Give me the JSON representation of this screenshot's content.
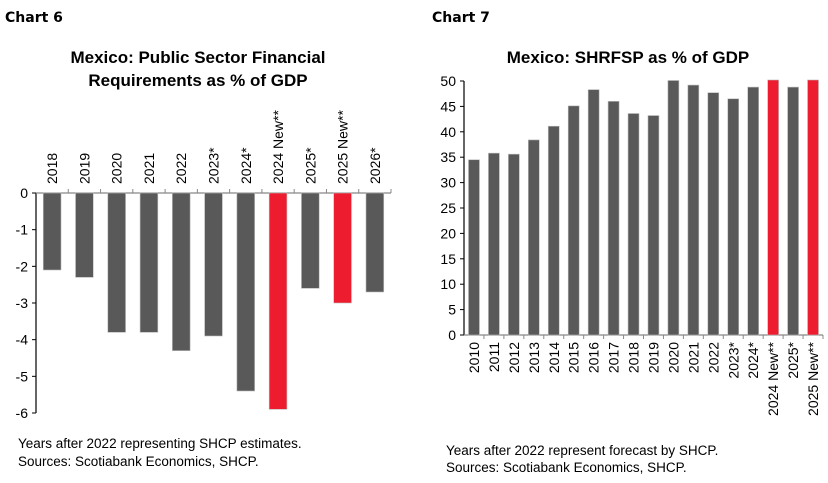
{
  "colors": {
    "bar": "#595959",
    "highlight": "#ED1C2E"
  },
  "chart_data": [
    {
      "type": "bar",
      "label": "Chart 6",
      "title": [
        "Mexico: Public Sector Financial",
        "Requirements as % of GDP"
      ],
      "categories": [
        "2018",
        "2019",
        "2020",
        "2021",
        "2022",
        "2023*",
        "2024*",
        "2024 New**",
        "2025*",
        "2025 New**",
        "2026*"
      ],
      "values": [
        -2.1,
        -2.3,
        -3.8,
        -3.8,
        -4.3,
        -3.9,
        -5.4,
        -5.9,
        -2.6,
        -3.0,
        -2.7
      ],
      "highlight": [
        false,
        false,
        false,
        false,
        false,
        false,
        false,
        true,
        false,
        true,
        false
      ],
      "ylim": [
        -6,
        0
      ],
      "yticks": [
        "0",
        "-1",
        "-2",
        "-3",
        "-4",
        "-5",
        "-6"
      ],
      "notes": [
        "Years after 2022 representing SHCP estimates.",
        "Sources: Scotiabank Economics, SHCP."
      ]
    },
    {
      "type": "bar",
      "label": "Chart 7",
      "title": [
        "Mexico: SHRFSP as % of GDP"
      ],
      "categories": [
        "2010",
        "2011",
        "2012",
        "2013",
        "2014",
        "2015",
        "2016",
        "2017",
        "2018",
        "2019",
        "2020",
        "2021",
        "2022",
        "2023*",
        "2024*",
        "2024 New**",
        "2025*",
        "2025 New**"
      ],
      "values": [
        34.5,
        35.8,
        35.6,
        38.4,
        41.1,
        45.1,
        48.3,
        46.0,
        43.6,
        43.2,
        50.1,
        49.2,
        47.7,
        46.5,
        48.8,
        50.2,
        48.8,
        50.2
      ],
      "highlight": [
        false,
        false,
        false,
        false,
        false,
        false,
        false,
        false,
        false,
        false,
        false,
        false,
        false,
        false,
        false,
        true,
        false,
        true
      ],
      "ylim": [
        0,
        50
      ],
      "yticks": [
        "50",
        "45",
        "40",
        "35",
        "30",
        "25",
        "20",
        "15",
        "10",
        "5",
        "0"
      ],
      "notes": [
        "Years after 2022 represent forecast by SHCP.",
        "Sources: Scotiabank Economics, SHCP."
      ]
    }
  ]
}
